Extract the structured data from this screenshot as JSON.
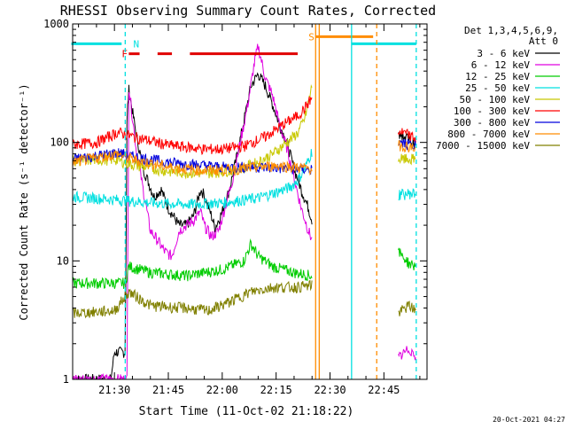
{
  "chart_data": {
    "type": "line",
    "title": "RHESSI Observing Summary Count Rates, Corrected",
    "xlabel": "Start Time (11-Oct-02 21:18:22)",
    "ylabel": "Corrected Count Rate (s⁻¹ detector⁻¹)",
    "yscale": "log",
    "ylim": [
      1,
      1000
    ],
    "xlim": [
      "21:18:22",
      "22:57:00"
    ],
    "ytick_values": [
      1,
      10,
      100,
      1000
    ],
    "ytick_labels": [
      "1",
      "10",
      "100",
      "1000"
    ],
    "xtick_values": [
      "21:30",
      "21:45",
      "22:00",
      "22:15",
      "22:30",
      "22:45"
    ],
    "xtick_labels": [
      "21:30",
      "21:45",
      "22:00",
      "22:15",
      "22:30",
      "22:45"
    ],
    "legend": {
      "position": "top-right",
      "header": [
        "Det 1,3,4,5,6,9,",
        "Att 0"
      ]
    },
    "series": [
      {
        "name": "3 - 6 keV",
        "color": "#000000",
        "points": [
          [
            "21:18",
            1
          ],
          [
            "21:29",
            1
          ],
          [
            "21:30",
            1.7
          ],
          [
            "21:33",
            1.7
          ],
          [
            "21:33.5",
            170
          ],
          [
            "21:34",
            280
          ],
          [
            "21:36",
            120
          ],
          [
            "21:38",
            60
          ],
          [
            "21:41",
            35
          ],
          [
            "21:43",
            40
          ],
          [
            "21:45",
            28
          ],
          [
            "21:48",
            20
          ],
          [
            "21:50",
            20
          ],
          [
            "21:52",
            24
          ],
          [
            "21:54",
            40
          ],
          [
            "21:55",
            36
          ],
          [
            "21:57",
            24
          ],
          [
            "21:58",
            19
          ],
          [
            "22:00",
            26
          ],
          [
            "22:02",
            40
          ],
          [
            "22:04",
            75
          ],
          [
            "22:06",
            150
          ],
          [
            "22:08",
            300
          ],
          [
            "22:10",
            380
          ],
          [
            "22:12",
            300
          ],
          [
            "22:14",
            210
          ],
          [
            "22:16",
            140
          ],
          [
            "22:18",
            100
          ],
          [
            "22:20",
            60
          ],
          [
            "22:22",
            40
          ],
          [
            "22:24",
            28
          ],
          [
            "22:25",
            22
          ]
        ]
      },
      {
        "name": "6 - 12 keV",
        "color": "#e000e0",
        "points": [
          [
            "21:18",
            1
          ],
          [
            "21:33.5",
            1
          ],
          [
            "21:34",
            300
          ],
          [
            "21:36",
            90
          ],
          [
            "21:38",
            40
          ],
          [
            "21:40",
            18
          ],
          [
            "21:42",
            15
          ],
          [
            "21:44",
            12
          ],
          [
            "21:46",
            11
          ],
          [
            "21:48",
            18
          ],
          [
            "21:50",
            20
          ],
          [
            "21:52",
            22
          ],
          [
            "21:54",
            26
          ],
          [
            "21:55",
            20
          ],
          [
            "21:57",
            16
          ],
          [
            "21:59",
            18
          ],
          [
            "22:01",
            30
          ],
          [
            "22:03",
            50
          ],
          [
            "22:05",
            100
          ],
          [
            "22:07",
            200
          ],
          [
            "22:09",
            480
          ],
          [
            "22:10",
            650
          ],
          [
            "22:12",
            350
          ],
          [
            "22:14",
            250
          ],
          [
            "22:16",
            140
          ],
          [
            "22:18",
            90
          ],
          [
            "22:20",
            50
          ],
          [
            "22:22",
            28
          ],
          [
            "22:24",
            18
          ],
          [
            "22:25",
            15
          ]
        ]
      },
      {
        "name": "12 - 25 keV",
        "color": "#00cc00",
        "points": [
          [
            "21:18",
            6.5
          ],
          [
            "21:33",
            6.5
          ],
          [
            "21:34",
            9
          ],
          [
            "21:40",
            8
          ],
          [
            "21:50",
            7.5
          ],
          [
            "22:00",
            8.5
          ],
          [
            "22:06",
            10
          ],
          [
            "22:08",
            14
          ],
          [
            "22:10",
            11
          ],
          [
            "22:14",
            9
          ],
          [
            "22:20",
            8
          ],
          [
            "22:25",
            7.5
          ]
        ]
      },
      {
        "name": "25 - 50 keV",
        "color": "#00e0e0",
        "points": [
          [
            "21:18",
            35
          ],
          [
            "21:30",
            33
          ],
          [
            "21:40",
            31
          ],
          [
            "21:50",
            30
          ],
          [
            "22:00",
            31
          ],
          [
            "22:10",
            34
          ],
          [
            "22:15",
            38
          ],
          [
            "22:19",
            42
          ],
          [
            "22:21",
            48
          ],
          [
            "22:23",
            60
          ],
          [
            "22:25",
            85
          ]
        ]
      },
      {
        "name": "50 - 100 keV",
        "color": "#c8c800",
        "points": [
          [
            "21:18",
            70
          ],
          [
            "21:30",
            72
          ],
          [
            "21:35",
            65
          ],
          [
            "21:45",
            57
          ],
          [
            "21:55",
            55
          ],
          [
            "22:00",
            57
          ],
          [
            "22:05",
            60
          ],
          [
            "22:10",
            68
          ],
          [
            "22:14",
            80
          ],
          [
            "22:18",
            100
          ],
          [
            "22:21",
            120
          ],
          [
            "22:23",
            160
          ],
          [
            "22:25",
            300
          ]
        ]
      },
      {
        "name": "100 - 300 keV",
        "color": "#ff0000",
        "points": [
          [
            "21:18",
            96
          ],
          [
            "21:25",
            100
          ],
          [
            "21:31",
            122
          ],
          [
            "21:35",
            112
          ],
          [
            "21:45",
            95
          ],
          [
            "21:55",
            88
          ],
          [
            "22:00",
            88
          ],
          [
            "22:06",
            93
          ],
          [
            "22:12",
            112
          ],
          [
            "22:17",
            142
          ],
          [
            "22:21",
            168
          ],
          [
            "22:23",
            195
          ],
          [
            "22:25",
            240
          ]
        ]
      },
      {
        "name": "300 - 800 keV",
        "color": "#0000dd",
        "points": [
          [
            "21:18",
            72
          ],
          [
            "21:31",
            82
          ],
          [
            "21:35",
            76
          ],
          [
            "21:45",
            68
          ],
          [
            "22:00",
            62
          ],
          [
            "22:10",
            62
          ],
          [
            "22:20",
            60
          ],
          [
            "22:25",
            59
          ]
        ]
      },
      {
        "name": "800 - 7000 keV",
        "color": "#ff8c00",
        "points": [
          [
            "21:18",
            68
          ],
          [
            "21:31",
            80
          ],
          [
            "21:35",
            72
          ],
          [
            "21:45",
            62
          ],
          [
            "21:55",
            58
          ],
          [
            "22:05",
            60
          ],
          [
            "22:15",
            64
          ],
          [
            "22:20",
            62
          ],
          [
            "22:25",
            60
          ]
        ]
      },
      {
        "name": "7000 - 15000 keV",
        "color": "#808000",
        "points": [
          [
            "21:18",
            3.6
          ],
          [
            "21:30",
            3.8
          ],
          [
            "21:34",
            5.5
          ],
          [
            "21:40",
            4.2
          ],
          [
            "21:50",
            4
          ],
          [
            "21:56",
            3.8
          ],
          [
            "22:02",
            4.5
          ],
          [
            "22:08",
            5.5
          ],
          [
            "22:14",
            6
          ],
          [
            "22:20",
            6
          ],
          [
            "22:25",
            6.2
          ]
        ]
      }
    ],
    "post_gap_series": [
      {
        "name": "3 - 6 keV",
        "color": "#000000",
        "points": [
          [
            "22:49",
            120
          ],
          [
            "22:52",
            105
          ],
          [
            "22:54",
            95
          ]
        ]
      },
      {
        "name": "6 - 12 keV",
        "color": "#e000e0",
        "points": [
          [
            "22:49",
            1.5
          ],
          [
            "22:52",
            1.8
          ],
          [
            "22:54",
            1.6
          ]
        ]
      },
      {
        "name": "12 - 25 keV",
        "color": "#00cc00",
        "points": [
          [
            "22:49",
            12
          ],
          [
            "22:52",
            9.5
          ],
          [
            "22:54",
            9
          ]
        ]
      },
      {
        "name": "25 - 50 keV",
        "color": "#00e0e0",
        "points": [
          [
            "22:49",
            36
          ],
          [
            "22:52",
            37
          ],
          [
            "22:54",
            37
          ]
        ]
      },
      {
        "name": "50 - 100 keV",
        "color": "#c8c800",
        "points": [
          [
            "22:49",
            72
          ],
          [
            "22:52",
            72
          ],
          [
            "22:54",
            72
          ]
        ]
      },
      {
        "name": "100 - 300 keV",
        "color": "#ff0000",
        "points": [
          [
            "22:49",
            125
          ],
          [
            "22:52",
            115
          ],
          [
            "22:54",
            105
          ]
        ]
      },
      {
        "name": "300 - 800 keV",
        "color": "#0000dd",
        "points": [
          [
            "22:49",
            100
          ],
          [
            "22:52",
            96
          ],
          [
            "22:54",
            93
          ]
        ]
      },
      {
        "name": "800 - 7000 keV",
        "color": "#ff8c00",
        "points": [
          [
            "22:49",
            95
          ],
          [
            "22:52",
            92
          ],
          [
            "22:54",
            88
          ]
        ]
      },
      {
        "name": "7000 - 15000 keV",
        "color": "#808000",
        "points": [
          [
            "22:49",
            3.6
          ],
          [
            "22:52",
            4.2
          ],
          [
            "22:54",
            3.8
          ]
        ]
      }
    ],
    "flag_bars": [
      {
        "label": "N",
        "color": "#00e0e0",
        "y": 680,
        "segments": [
          [
            "21:18",
            "21:32"
          ],
          [
            "22:36",
            "22:54"
          ]
        ]
      },
      {
        "label": "F",
        "color": "#e00000",
        "y": 560,
        "segments": [
          [
            "21:34",
            "21:37"
          ],
          [
            "21:42",
            "21:46"
          ],
          [
            "21:51",
            "22:21"
          ]
        ]
      },
      {
        "label": "S",
        "color": "#ff8c00",
        "y": 780,
        "segments": [
          [
            "22:26",
            "22:42"
          ]
        ]
      }
    ],
    "vertical_markers": [
      {
        "t": "21:33",
        "color": "#00e0e0",
        "style": "dashed"
      },
      {
        "t": "22:26",
        "color": "#ff8c00",
        "style": "solid"
      },
      {
        "t": "22:27",
        "color": "#ff8c00",
        "style": "solid"
      },
      {
        "t": "22:36",
        "color": "#00e0e0",
        "style": "solid"
      },
      {
        "t": "22:43",
        "color": "#ff8c00",
        "style": "dashed"
      },
      {
        "t": "22:54",
        "color": "#00e0e0",
        "style": "dashed"
      }
    ],
    "footer_date": "20-Oct-2021 04:27"
  }
}
